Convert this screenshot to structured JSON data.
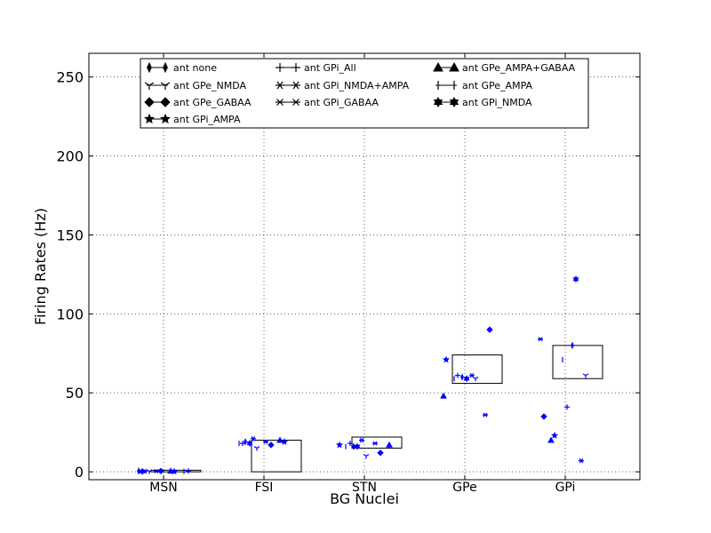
{
  "chart_data": {
    "type": "scatter",
    "title": "",
    "xlabel": "BG Nuclei",
    "ylabel": "Firing Rates (Hz)",
    "categories": [
      "MSN",
      "FSI",
      "STN",
      "GPe",
      "GPi"
    ],
    "ylim": [
      -5,
      265
    ],
    "yticks": [
      0,
      50,
      100,
      150,
      200,
      250
    ],
    "grid": true,
    "marker_color": "#0000ff",
    "legend_placement": "top",
    "reference_boxes": [
      {
        "category": "MSN",
        "low": 0,
        "high": 1
      },
      {
        "category": "FSI",
        "low": 0,
        "high": 20
      },
      {
        "category": "STN",
        "low": 15,
        "high": 22
      },
      {
        "category": "GPe",
        "low": 56,
        "high": 74
      },
      {
        "category": "GPi",
        "low": 59,
        "high": 80
      }
    ],
    "series": [
      {
        "name": "ant none",
        "marker": "thin-diamond",
        "values": [
          0.5,
          19,
          16,
          60,
          80
        ]
      },
      {
        "name": "ant GPe_NMDA",
        "marker": "tri-down",
        "values": [
          0.3,
          15,
          10,
          59,
          61
        ]
      },
      {
        "name": "ant GPe_GABAA",
        "marker": "diamond",
        "values": [
          0.5,
          17,
          12,
          90,
          35
        ]
      },
      {
        "name": "ant GPi_AMPA",
        "marker": "star",
        "values": [
          0.2,
          19,
          17,
          71,
          23
        ]
      },
      {
        "name": "ant GPi_All",
        "marker": "plus",
        "values": [
          0.5,
          18,
          18,
          61,
          41
        ]
      },
      {
        "name": "ant GPi_NMDA+AMPA",
        "marker": "tri-star",
        "values": [
          0.3,
          21,
          20,
          61,
          7
        ]
      },
      {
        "name": "ant GPi_GABAA",
        "marker": "x-star",
        "values": [
          0.4,
          19,
          18,
          36,
          84
        ]
      },
      {
        "name": "ant GPe_AMPA+GABAA",
        "marker": "triangle",
        "values": [
          0.5,
          20,
          17,
          48,
          20
        ]
      },
      {
        "name": "ant GPe_AMPA",
        "marker": "vline",
        "values": [
          0.3,
          18,
          16,
          59,
          71
        ]
      },
      {
        "name": "ant GPi_NMDA",
        "marker": "hexagram",
        "values": [
          0.2,
          18,
          16,
          59,
          122
        ]
      }
    ]
  }
}
